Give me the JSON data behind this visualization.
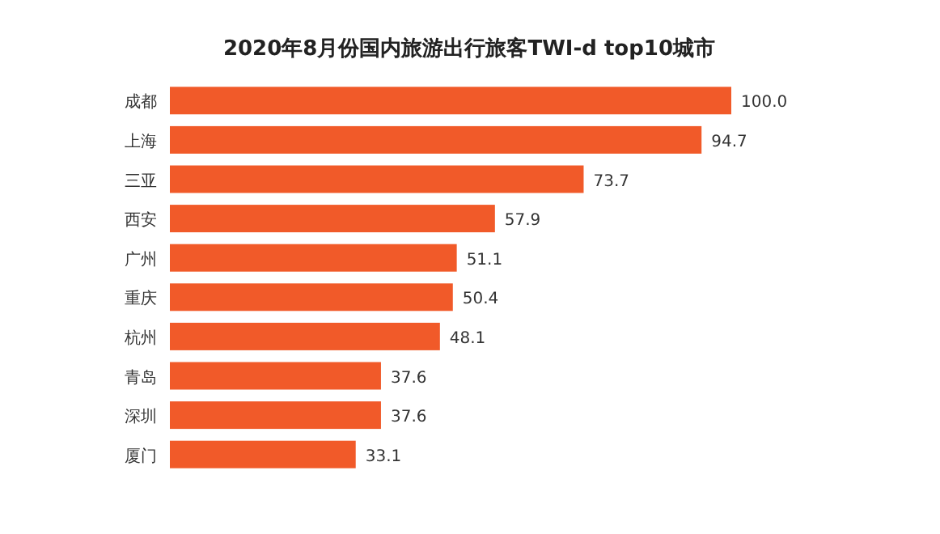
{
  "chart_data": {
    "type": "bar",
    "orientation": "horizontal",
    "title": "2020年8月份国内旅游出行旅客TWI-d top10城市",
    "categories": [
      "成都",
      "上海",
      "三亚",
      "西安",
      "广州",
      "重庆",
      "杭州",
      "青岛",
      "深圳",
      "厦门"
    ],
    "values": [
      100.0,
      94.7,
      73.7,
      57.9,
      51.1,
      50.4,
      48.1,
      37.6,
      37.6,
      33.1
    ],
    "value_labels": [
      "100.0",
      "94.7",
      "73.7",
      "57.9",
      "51.1",
      "50.4",
      "48.1",
      "37.6",
      "37.6",
      "33.1"
    ],
    "color": "#f15a29"
  }
}
